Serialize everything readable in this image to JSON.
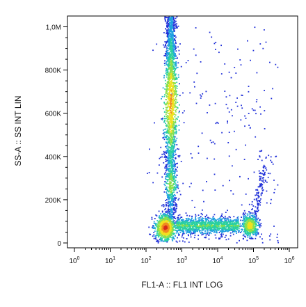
{
  "chart_data": {
    "type": "scatter",
    "style": "flow-cytometry density dot plot",
    "xlabel": "FL1-A :: FL1 INT LOG",
    "ylabel": "SS-A :: SS INT LIN",
    "x_scale": "log",
    "xlim": [
      1,
      1000000
    ],
    "y_scale": "linear",
    "ylim": [
      0,
      1050000
    ],
    "x_ticks": [
      {
        "value": 1,
        "base": "10",
        "exp": "0"
      },
      {
        "value": 10,
        "base": "10",
        "exp": "1"
      },
      {
        "value": 100,
        "base": "10",
        "exp": "2"
      },
      {
        "value": 1000,
        "base": "10",
        "exp": "3"
      },
      {
        "value": 10000,
        "base": "10",
        "exp": "4"
      },
      {
        "value": 100000,
        "base": "10",
        "exp": "5"
      },
      {
        "value": 1000000,
        "base": "10",
        "exp": "6"
      }
    ],
    "y_ticks": [
      {
        "value": 0,
        "label": "0"
      },
      {
        "value": 200000,
        "label": "200K"
      },
      {
        "value": 400000,
        "label": "400K"
      },
      {
        "value": 600000,
        "label": "600K"
      },
      {
        "value": 800000,
        "label": "800K"
      },
      {
        "value": 1000000,
        "label": "1,0M"
      }
    ],
    "density_colors": [
      "#1f2fd8",
      "#1fa0e0",
      "#2ad0a0",
      "#8be04a",
      "#f0e020",
      "#f08a20",
      "#d82a1a"
    ],
    "populations": [
      {
        "name": "vertical column",
        "x_center": 500,
        "x_spread_log": 0.1,
        "y_range": [
          80000,
          1050000
        ],
        "density": "high",
        "count": 2200
      },
      {
        "name": "low-FL1 cluster",
        "x_center": 350,
        "x_spread_log": 0.14,
        "y_center": 70000,
        "y_spread": 30000,
        "density": "very high",
        "count": 900
      },
      {
        "name": "horizontal band",
        "x_range": [
          700,
          40000
        ],
        "y_center": 80000,
        "y_spread": 20000,
        "density": "medium",
        "count": 1200
      },
      {
        "name": "high-FL1 cluster",
        "x_center": 80000,
        "x_spread_log": 0.12,
        "y_center": 80000,
        "y_spread": 25000,
        "density": "high",
        "count": 500
      },
      {
        "name": "high-FL1 tail",
        "x_range": [
          90000,
          200000
        ],
        "y_range": [
          100000,
          350000
        ],
        "density": "low",
        "count": 120
      },
      {
        "name": "background",
        "x_range": [
          100,
          500000
        ],
        "y_range": [
          0,
          1000000
        ],
        "density": "sparse",
        "count": 260
      }
    ],
    "grid": false,
    "legend": "none"
  }
}
